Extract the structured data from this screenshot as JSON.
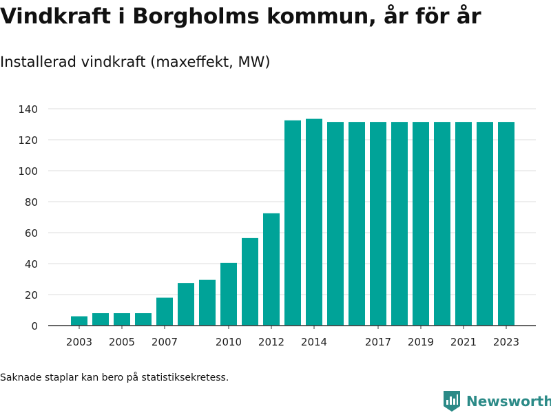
{
  "header": {
    "title": "Vindkraft i Borgholms kommun, år för år",
    "subtitle": "Installerad vindkraft (maxeffekt, MW)"
  },
  "footer": {
    "note": "Saknade staplar kan bero på statistiksekretess.",
    "brand": "Newsworthy",
    "brand_icon": "bar-chart-logo-icon"
  },
  "colors": {
    "bar": "#00a398",
    "grid": "#dddddd",
    "axis": "#333333",
    "brand": "#2b8a87"
  },
  "chart_data": {
    "type": "bar",
    "title": "Vindkraft i Borgholms kommun, år för år",
    "subtitle": "Installerad vindkraft (maxeffekt, MW)",
    "xlabel": "",
    "ylabel": "",
    "ylim": [
      0,
      140
    ],
    "yticks": [
      0,
      20,
      40,
      60,
      80,
      100,
      120,
      140
    ],
    "xticks": [
      "2003",
      "2005",
      "2007",
      "2010",
      "2012",
      "2014",
      "2017",
      "2019",
      "2021",
      "2023"
    ],
    "grid": true,
    "categories": [
      "2003",
      "2004",
      "2005",
      "2006",
      "2007",
      "2008",
      "2009",
      "2010",
      "2011",
      "2012",
      "2013",
      "2014",
      "2015",
      "2016",
      "2017",
      "2018",
      "2019",
      "2020",
      "2021",
      "2022",
      "2023"
    ],
    "values": [
      6,
      8,
      8,
      8,
      18,
      27.5,
      29.5,
      40.5,
      56.5,
      72.5,
      132.5,
      133.5,
      131.5,
      131.5,
      131.5,
      131.5,
      131.5,
      131.5,
      131.5,
      131.5,
      131.5
    ]
  }
}
